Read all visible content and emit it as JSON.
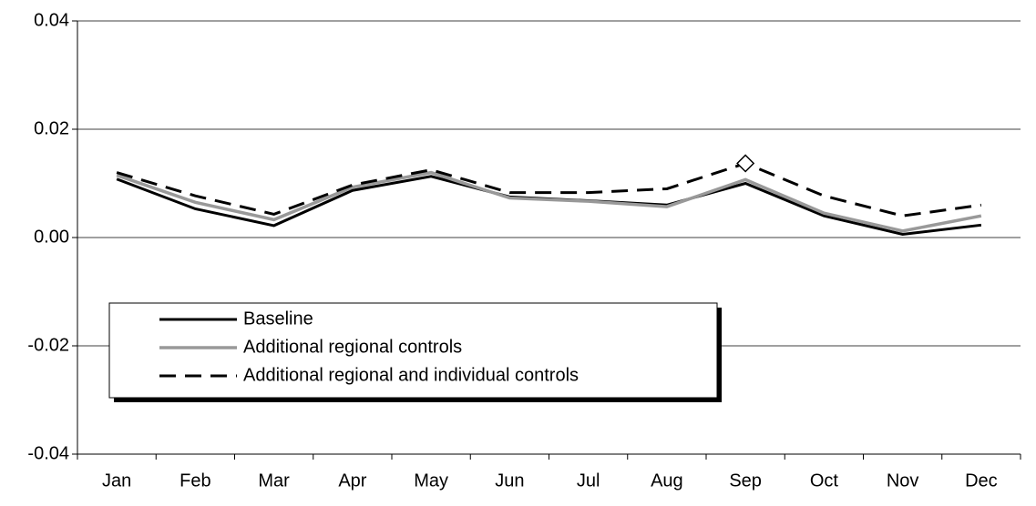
{
  "chart_data": {
    "type": "line",
    "categories": [
      "Jan",
      "Feb",
      "Mar",
      "Apr",
      "May",
      "Jun",
      "Jul",
      "Aug",
      "Sep",
      "Oct",
      "Nov",
      "Dec"
    ],
    "series": [
      {
        "name": "Baseline",
        "color": "#000000",
        "dash": "solid",
        "values": [
          0.0108,
          0.0053,
          0.0022,
          0.0087,
          0.0113,
          0.0075,
          0.0068,
          0.006,
          0.01,
          0.004,
          0.0006,
          0.0023
        ]
      },
      {
        "name": "Additional regional controls",
        "color": "#999999",
        "dash": "solid",
        "values": [
          0.0115,
          0.0065,
          0.0033,
          0.0093,
          0.012,
          0.0073,
          0.0067,
          0.0057,
          0.0107,
          0.0045,
          0.0012,
          0.004
        ]
      },
      {
        "name": "Additional regional and individual controls",
        "color": "#000000",
        "dash": "dashed",
        "values": [
          0.012,
          0.0077,
          0.0043,
          0.0097,
          0.0125,
          0.0083,
          0.0083,
          0.009,
          0.0137,
          0.0077,
          0.004,
          0.006
        ],
        "markers": [
          null,
          null,
          null,
          null,
          null,
          null,
          null,
          null,
          "diamond",
          null,
          null,
          null
        ]
      }
    ],
    "ylim": [
      -0.04,
      0.04
    ],
    "yticks": [
      -0.04,
      -0.02,
      {
        "value": 0,
        "label": "0.00"
      },
      0.02,
      0.04
    ],
    "grid": true,
    "legend": "lower left"
  }
}
